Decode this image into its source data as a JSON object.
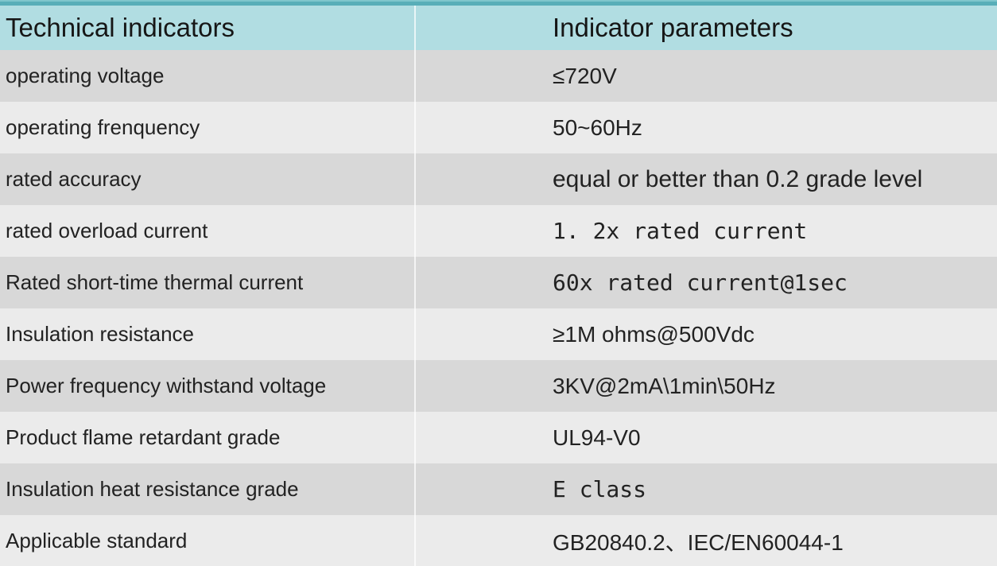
{
  "theme": {
    "header_bg": "#b1dde2",
    "top_stripe_light": "#7fc6cc",
    "top_stripe_dark": "#58aeb8",
    "row_dark": "#d8d8d8",
    "row_light": "#ebebeb",
    "divider": "rgba(255,255,255,0.72)",
    "text": "#1e1e1e"
  },
  "table": {
    "columns": [
      {
        "label": "Technical indicators"
      },
      {
        "label": "Indicator parameters"
      }
    ],
    "rows": [
      {
        "indicator": "operating voltage",
        "parameter": "≤720V"
      },
      {
        "indicator": "operating frenquency",
        "parameter": "50~60Hz"
      },
      {
        "indicator": "rated accuracy",
        "parameter": "equal or better than 0.2 grade level"
      },
      {
        "indicator": "rated overload current",
        "parameter": "1. 2x rated current"
      },
      {
        "indicator": "Rated short-time thermal current",
        "parameter": "60x rated current@1sec"
      },
      {
        "indicator": "Insulation resistance",
        "parameter": "≥1M ohms@500Vdc"
      },
      {
        "indicator": "Power frequency withstand voltage",
        "parameter": "3KV@2mA\\1min\\50Hz"
      },
      {
        "indicator": "Product flame retardant grade",
        "parameter": "UL94-V0"
      },
      {
        "indicator": "Insulation heat resistance grade",
        "parameter": "E class"
      },
      {
        "indicator": "Applicable standard",
        "parameter": "GB20840.2、IEC/EN60044-1"
      }
    ]
  },
  "chart_data": {
    "type": "table",
    "title": "",
    "columns": [
      "Technical indicators",
      "Indicator parameters"
    ],
    "rows": [
      [
        "operating voltage",
        "≤720V"
      ],
      [
        "operating frenquency",
        "50~60Hz"
      ],
      [
        "rated accuracy",
        "equal or better than 0.2 grade level"
      ],
      [
        "rated overload current",
        "1. 2x rated current"
      ],
      [
        "Rated short-time thermal current",
        "60x rated current@1sec"
      ],
      [
        "Insulation resistance",
        "≥1M ohms@500Vdc"
      ],
      [
        "Power frequency withstand voltage",
        "3KV@2mA\\1min\\50Hz"
      ],
      [
        "Product flame retardant grade",
        "UL94-V0"
      ],
      [
        "Insulation heat resistance grade",
        "E class"
      ],
      [
        "Applicable standard",
        "GB20840.2、IEC/EN60044-1"
      ]
    ]
  }
}
